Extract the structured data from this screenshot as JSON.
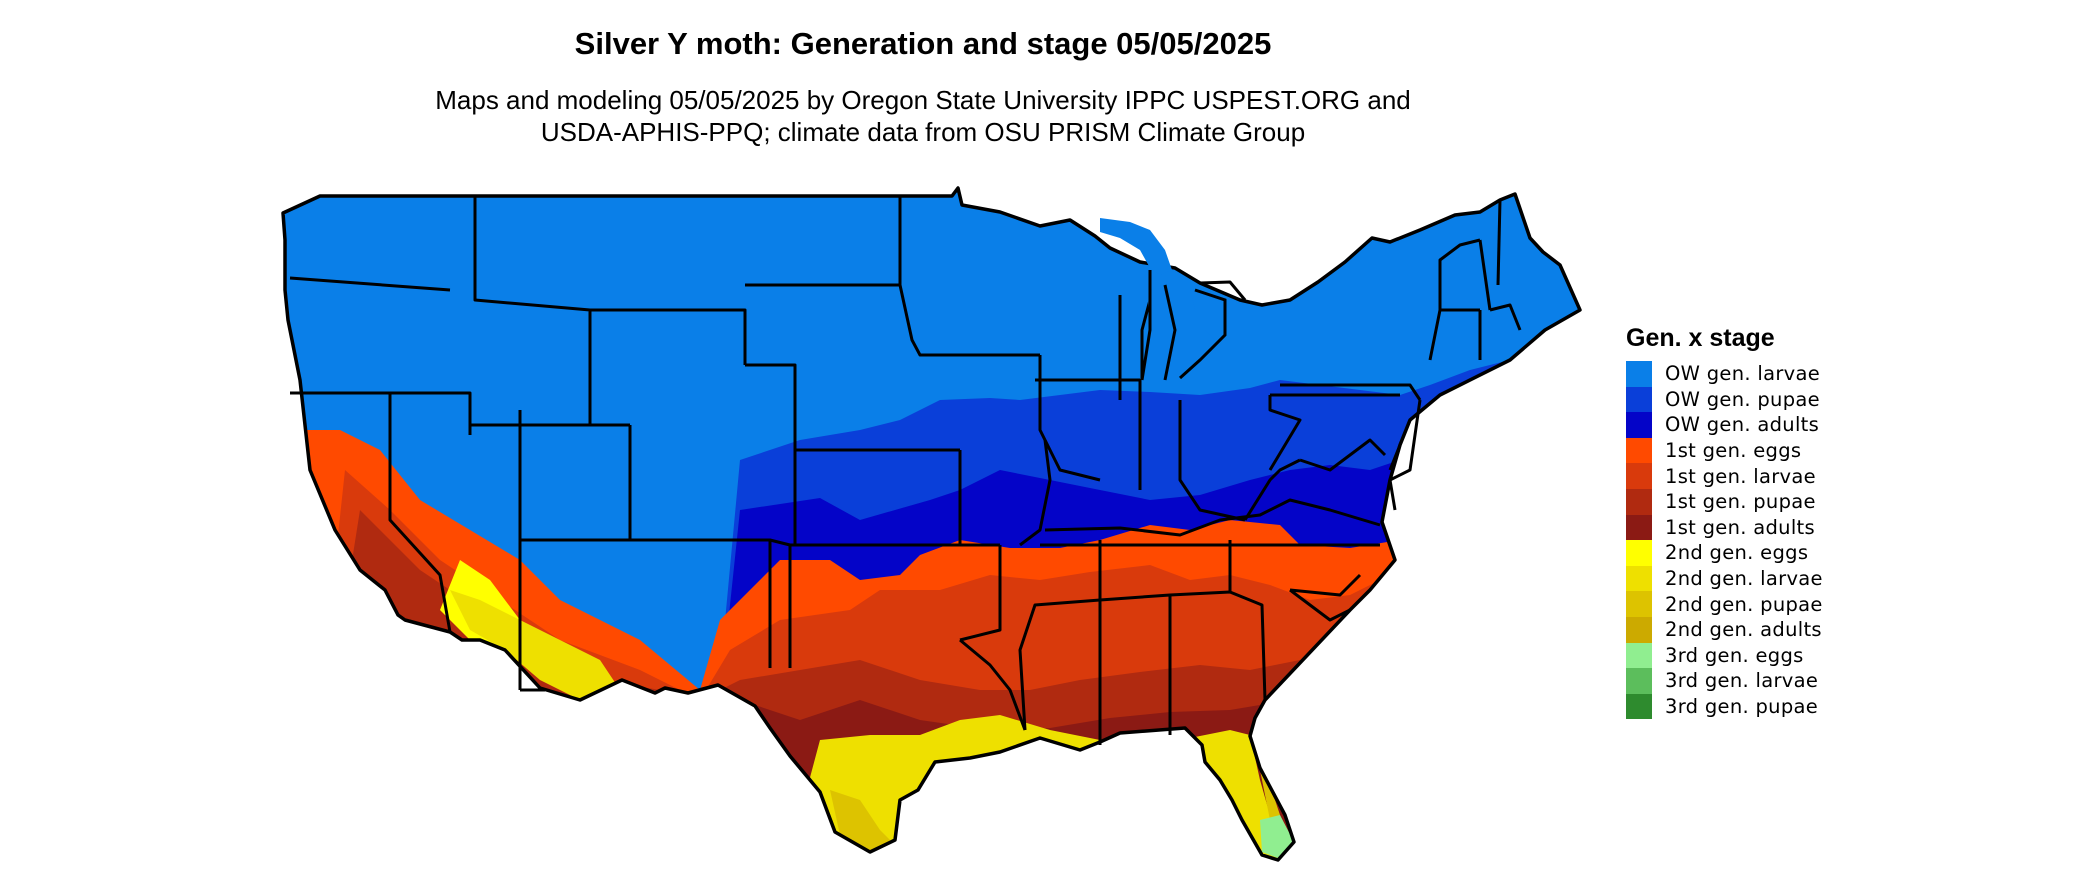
{
  "title": "Silver Y moth: Generation and stage 05/05/2025",
  "subtitle_line1": "Maps and modeling 05/05/2025 by Oregon State University IPPC USPEST.ORG and",
  "subtitle_line2": "USDA-APHIS-PPQ; climate data from OSU PRISM Climate Group",
  "legend": {
    "title": "Gen. x stage",
    "items": [
      {
        "label": "OW gen. larvae",
        "color": "#0A7FE8"
      },
      {
        "label": "OW gen. pupae",
        "color": "#0A3FD9"
      },
      {
        "label": "OW gen. adults",
        "color": "#0404C8"
      },
      {
        "label": "1st gen. eggs",
        "color": "#FF4A00"
      },
      {
        "label": "1st gen. larvae",
        "color": "#D93A0C"
      },
      {
        "label": "1st gen. pupae",
        "color": "#B02A10"
      },
      {
        "label": "1st gen. adults",
        "color": "#8B1A14"
      },
      {
        "label": "2nd gen. eggs",
        "color": "#FFFF00"
      },
      {
        "label": "2nd gen. larvae",
        "color": "#EEE000"
      },
      {
        "label": "2nd gen. pupae",
        "color": "#DDC300"
      },
      {
        "label": "2nd gen. adults",
        "color": "#CCAA00"
      },
      {
        "label": "3rd gen. eggs",
        "color": "#90EE90"
      },
      {
        "label": "3rd gen. larvae",
        "color": "#5CBE5C"
      },
      {
        "label": "3rd gen. pupae",
        "color": "#2E8B2E"
      }
    ]
  }
}
